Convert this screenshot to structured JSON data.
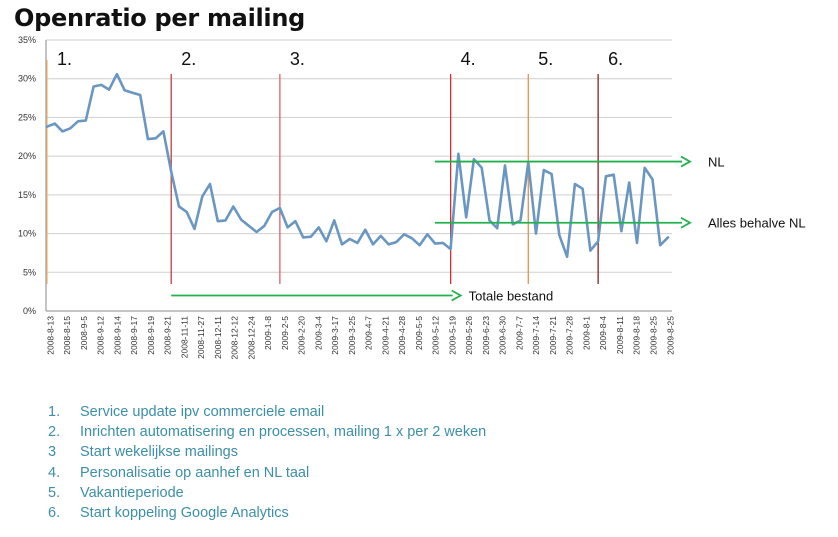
{
  "title": "Openratio per mailing",
  "chart_data": {
    "type": "line",
    "title": "Openratio per mailing",
    "xlabel": "",
    "ylabel": "",
    "ylim": [
      0,
      35
    ],
    "yticks": [
      0,
      5,
      10,
      15,
      20,
      25,
      30,
      35
    ],
    "ytick_labels": [
      "0%",
      "5%",
      "10%",
      "15%",
      "20%",
      "25%",
      "30%",
      "35%"
    ],
    "grid": "horizontal",
    "x_tick_labels": [
      "2008-8-13",
      "2008-8-15",
      "2008-9-5",
      "2008-9-12",
      "2008-9-14",
      "2008-9-17",
      "2008-9-19",
      "2008-9-21",
      "2008-11-11",
      "2008-11-27",
      "2008-12-11",
      "2008-12-12",
      "2008-12-24",
      "2009-1-8",
      "2009-2-5",
      "2009-2-20",
      "2009-3-4",
      "2009-3-17",
      "2009-3-25",
      "2009-4-7",
      "2009-4-21",
      "2009-4-28",
      "2009-5-5",
      "2009-5-12",
      "2009-5-19",
      "2009-5-26",
      "2009-6-23",
      "2009-6-30",
      "2009-7-7",
      "2009-7-14",
      "2009-7-21",
      "2009-7-28",
      "2009-8-1",
      "2009-8-4",
      "2009-8-11",
      "2009-8-18",
      "2009-8-25",
      "2009-8-25"
    ],
    "series": [
      {
        "color": "#6a97c2",
        "values": [
          23.8,
          24.2,
          23.2,
          23.6,
          24.5,
          24.6,
          29.0,
          29.2,
          28.6,
          30.6,
          28.5,
          28.2,
          27.9,
          22.2,
          22.3,
          23.2,
          18.0,
          13.5,
          12.8,
          10.6,
          14.8,
          16.4,
          11.6,
          11.7,
          13.5,
          11.8,
          11.0,
          10.2,
          11.0,
          12.8,
          13.3,
          10.8,
          11.6,
          9.5,
          9.6,
          10.8,
          9.0,
          11.7,
          8.6,
          9.3,
          8.8,
          10.5,
          8.6,
          9.7,
          8.6,
          8.9,
          9.9,
          9.4,
          8.5,
          9.9,
          8.7,
          8.8,
          8.0,
          20.3,
          12.1,
          19.6,
          18.5,
          11.7,
          10.7,
          18.8,
          11.2,
          11.7,
          19.2,
          10.0,
          18.2,
          17.7,
          9.8,
          7.0,
          16.4,
          15.8,
          7.8,
          9.0,
          17.4,
          17.6,
          10.3,
          16.6,
          8.8,
          18.5,
          17.0,
          8.5,
          9.5
        ]
      }
    ],
    "phase_markers": [
      {
        "label": "1.",
        "index": 0,
        "color": "#f0b870"
      },
      {
        "label": "2.",
        "index": 16,
        "color": "#c04040"
      },
      {
        "label": "3.",
        "index": 30,
        "color": "#e06060"
      },
      {
        "label": "4.",
        "index": 52,
        "color": "#d03030"
      },
      {
        "label": "5.",
        "index": 62,
        "color": "#e69050"
      },
      {
        "label": "6.",
        "index": 71,
        "color": "#8b2020"
      }
    ],
    "annotations": [
      {
        "label": "NL",
        "y": 19.3,
        "from_index": 51,
        "color": "#22b14c"
      },
      {
        "label": "Alles behalve NL",
        "y": 11.4,
        "from_index": 51,
        "color": "#22b14c"
      },
      {
        "label": "Totale bestand",
        "y": 2.0,
        "from_index": 16,
        "to_index": 52,
        "color": "#22b14c"
      }
    ]
  },
  "notes": [
    {
      "num": "1.",
      "text": "Service update ipv commerciele email"
    },
    {
      "num": "2.",
      "text": "Inrichten automatisering en processen, mailing 1 x per 2 weken"
    },
    {
      "num": "3",
      "text": "Start wekelijkse mailings"
    },
    {
      "num": "4.",
      "text": "Personalisatie op aanhef en NL taal"
    },
    {
      "num": "5.",
      "text": "Vakantieperiode"
    },
    {
      "num": "6.",
      "text": "Start koppeling  Google Analytics"
    }
  ]
}
